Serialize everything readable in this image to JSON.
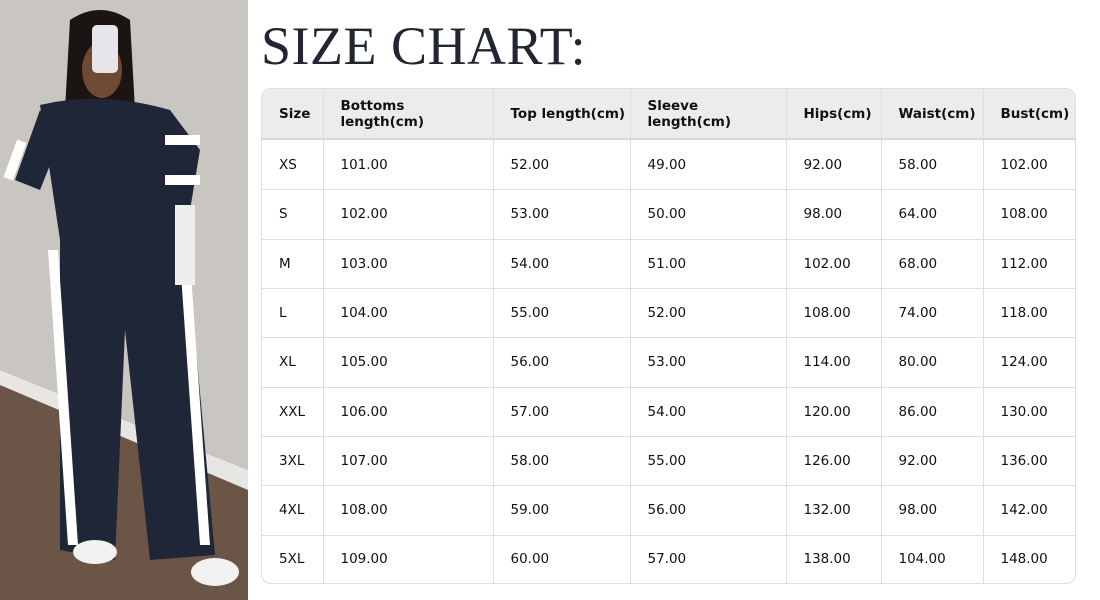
{
  "title": "SIZE CHART:",
  "photo": {
    "subject": "model in navy zip-up jacket and wide-leg pants with white side stripes",
    "colors": {
      "outfit": "#1f2638",
      "stripe": "#ffffff",
      "wall": "#c8c4c0",
      "floor": "#6b5546"
    }
  },
  "table": {
    "headers": [
      "Size",
      "Bottoms length(cm)",
      "Top length(cm)",
      "Sleeve length(cm)",
      "Hips(cm)",
      "Waist(cm)",
      "Bust(cm)"
    ],
    "rows": [
      [
        "XS",
        "101.00",
        "52.00",
        "49.00",
        "92.00",
        "58.00",
        "102.00"
      ],
      [
        "S",
        "102.00",
        "53.00",
        "50.00",
        "98.00",
        "64.00",
        "108.00"
      ],
      [
        "M",
        "103.00",
        "54.00",
        "51.00",
        "102.00",
        "68.00",
        "112.00"
      ],
      [
        "L",
        "104.00",
        "55.00",
        "52.00",
        "108.00",
        "74.00",
        "118.00"
      ],
      [
        "XL",
        "105.00",
        "56.00",
        "53.00",
        "114.00",
        "80.00",
        "124.00"
      ],
      [
        "XXL",
        "106.00",
        "57.00",
        "54.00",
        "120.00",
        "86.00",
        "130.00"
      ],
      [
        "3XL",
        "107.00",
        "58.00",
        "55.00",
        "126.00",
        "92.00",
        "136.00"
      ],
      [
        "4XL",
        "108.00",
        "59.00",
        "56.00",
        "132.00",
        "98.00",
        "142.00"
      ],
      [
        "5XL",
        "109.00",
        "60.00",
        "57.00",
        "138.00",
        "104.00",
        "148.00"
      ]
    ]
  }
}
